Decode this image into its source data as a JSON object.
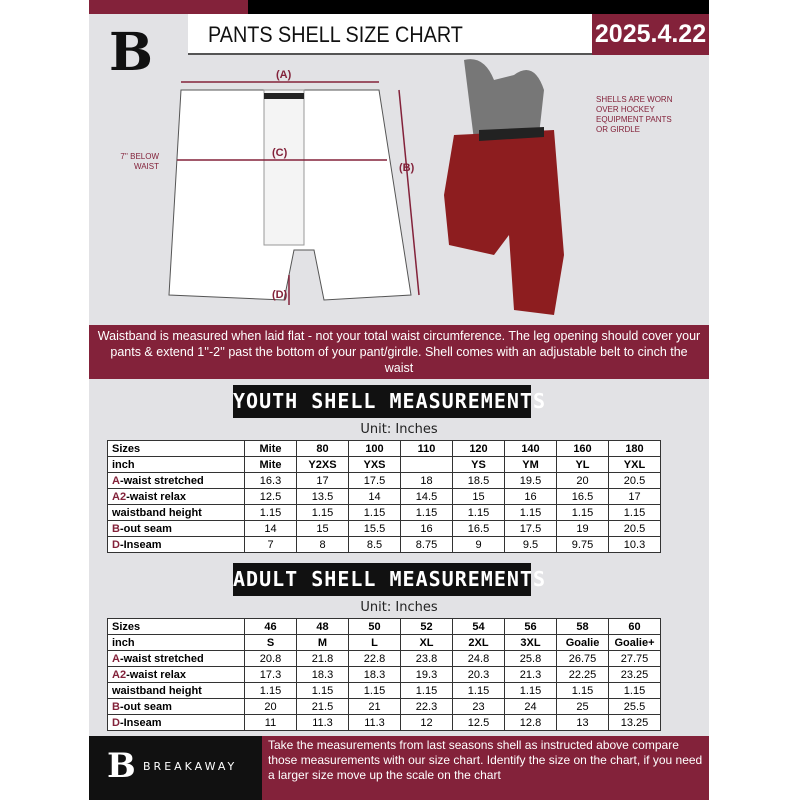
{
  "header": {
    "logo": "B",
    "title": "PANTS SHELL SIZE CHART",
    "date": "2025.4.22"
  },
  "diagram": {
    "label_a": "(A)",
    "label_b": "(B)",
    "label_c": "(C)",
    "label_d": "(D)",
    "waist_note": "7'' BELOW WAIST",
    "shell_note": "SHELLS ARE WORN OVER HOCKEY EQUIPMENT PANTS OR GIRDLE"
  },
  "banner": "Waistband is measured when laid flat - not your total waist circumference. The leg opening should cover your pants & extend 1''-2'' past the bottom of your pant/girdle. Shell comes with an adjustable belt to cinch the waist",
  "youth": {
    "title": "YOUTH SHELL MEASUREMENTS",
    "unit": "Unit: Inches",
    "rows": [
      {
        "p": "",
        "l": "Sizes",
        "v": [
          "Mite",
          "80",
          "100",
          "110",
          "120",
          "140",
          "160",
          "180"
        ]
      },
      {
        "p": "",
        "l": "inch",
        "v": [
          "Mite",
          "Y2XS",
          "YXS",
          "",
          "YS",
          "YM",
          "YL",
          "YXL"
        ]
      },
      {
        "p": "A",
        "l": "-waist stretched",
        "v": [
          "16.3",
          "17",
          "17.5",
          "18",
          "18.5",
          "19.5",
          "20",
          "20.5"
        ]
      },
      {
        "p": "A2",
        "l": "-waist relax",
        "v": [
          "12.5",
          "13.5",
          "14",
          "14.5",
          "15",
          "16",
          "16.5",
          "17"
        ]
      },
      {
        "p": "",
        "l": "waistband height",
        "v": [
          "1.15",
          "1.15",
          "1.15",
          "1.15",
          "1.15",
          "1.15",
          "1.15",
          "1.15"
        ]
      },
      {
        "p": "B",
        "l": "-out seam",
        "v": [
          "14",
          "15",
          "15.5",
          "16",
          "16.5",
          "17.5",
          "19",
          "20.5"
        ]
      },
      {
        "p": "D",
        "l": "-Inseam",
        "v": [
          "7",
          "8",
          "8.5",
          "8.75",
          "9",
          "9.5",
          "9.75",
          "10.3"
        ]
      }
    ]
  },
  "adult": {
    "title": "ADULT SHELL MEASUREMENTS",
    "unit": "Unit: Inches",
    "rows": [
      {
        "p": "",
        "l": "Sizes",
        "v": [
          "46",
          "48",
          "50",
          "52",
          "54",
          "56",
          "58",
          "60"
        ]
      },
      {
        "p": "",
        "l": "inch",
        "v": [
          "S",
          "M",
          "L",
          "XL",
          "2XL",
          "3XL",
          "Goalie",
          "Goalie+"
        ]
      },
      {
        "p": "A",
        "l": "-waist stretched",
        "v": [
          "20.8",
          "21.8",
          "22.8",
          "23.8",
          "24.8",
          "25.8",
          "26.75",
          "27.75"
        ]
      },
      {
        "p": "A2",
        "l": "-waist relax",
        "v": [
          "17.3",
          "18.3",
          "18.3",
          "19.3",
          "20.3",
          "21.3",
          "22.25",
          "23.25"
        ]
      },
      {
        "p": "",
        "l": "waistband height",
        "v": [
          "1.15",
          "1.15",
          "1.15",
          "1.15",
          "1.15",
          "1.15",
          "1.15",
          "1.15"
        ]
      },
      {
        "p": "B",
        "l": "-out seam",
        "v": [
          "20",
          "21.5",
          "21",
          "22.3",
          "23",
          "24",
          "25",
          "25.5"
        ]
      },
      {
        "p": "D",
        "l": "-Inseam",
        "v": [
          "11",
          "11.3",
          "11.3",
          "12",
          "12.5",
          "12.8",
          "13",
          "13.25"
        ]
      }
    ]
  },
  "footer": {
    "logo": "B",
    "brand": "BREAKAWAY",
    "text": "Take the measurements from last seasons shell as instructed above compare those measurements  with our size chart. Identify the size on the chart, if you need a larger size move up the scale on the chart"
  },
  "colors": {
    "brand": "#83223a",
    "dark": "#111111",
    "background": "#e2e2e5"
  }
}
